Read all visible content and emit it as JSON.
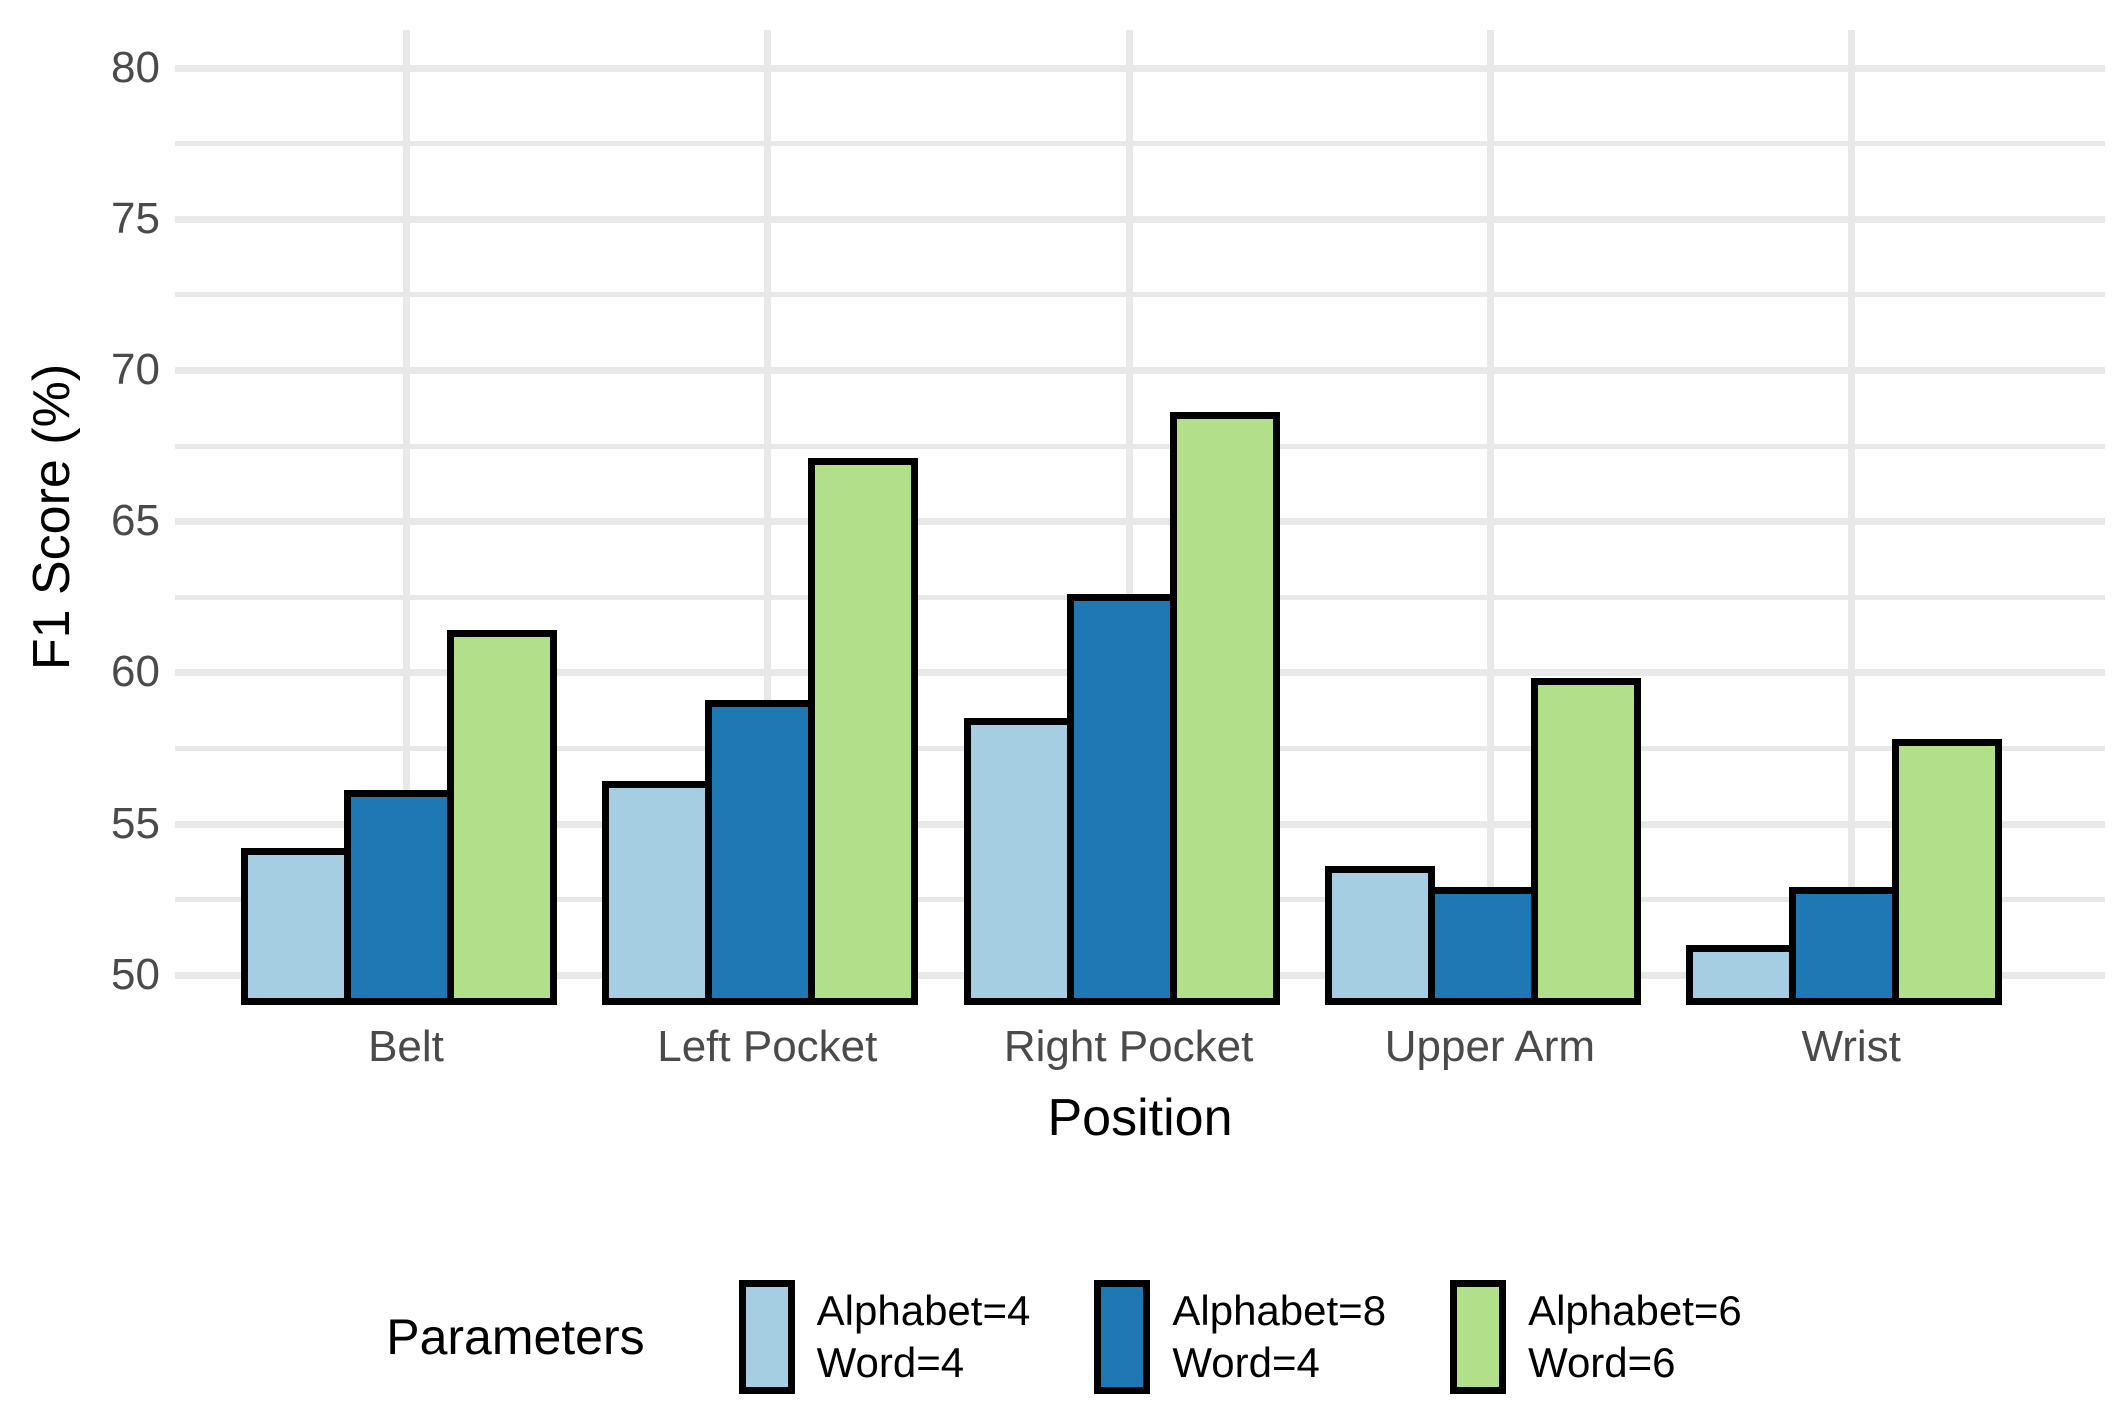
{
  "chart_data": {
    "type": "bar",
    "title": "",
    "xlabel": "Position",
    "ylabel": "F1 Score (%)",
    "categories": [
      "Belt",
      "Left Pocket",
      "Right Pocket",
      "Upper Arm",
      "Wrist"
    ],
    "series": [
      {
        "name": "Alphabet=4\nWord=4",
        "color": "#A6CEE3",
        "values": [
          54.2,
          56.4,
          58.5,
          53.6,
          51.0
        ]
      },
      {
        "name": "Alphabet=8\nWord=4",
        "color": "#1F78B4",
        "values": [
          56.1,
          59.1,
          62.6,
          52.9,
          52.9
        ]
      },
      {
        "name": "Alphabet=6\nWord=6",
        "color": "#B2DF8A",
        "values": [
          61.4,
          67.1,
          68.6,
          59.8,
          57.8
        ]
      }
    ],
    "y_ticks": [
      50,
      55,
      60,
      65,
      70,
      75,
      80
    ],
    "minor_tick_step": 2.5,
    "ylim": [
      49.0,
      81.24
    ],
    "grid": "on",
    "legend_title": "Parameters",
    "legend_position": "bottom",
    "bar_outline_color": "#000000",
    "gridline_color": "#e8e8e8",
    "tick_label_color": "#4a4a4a"
  }
}
